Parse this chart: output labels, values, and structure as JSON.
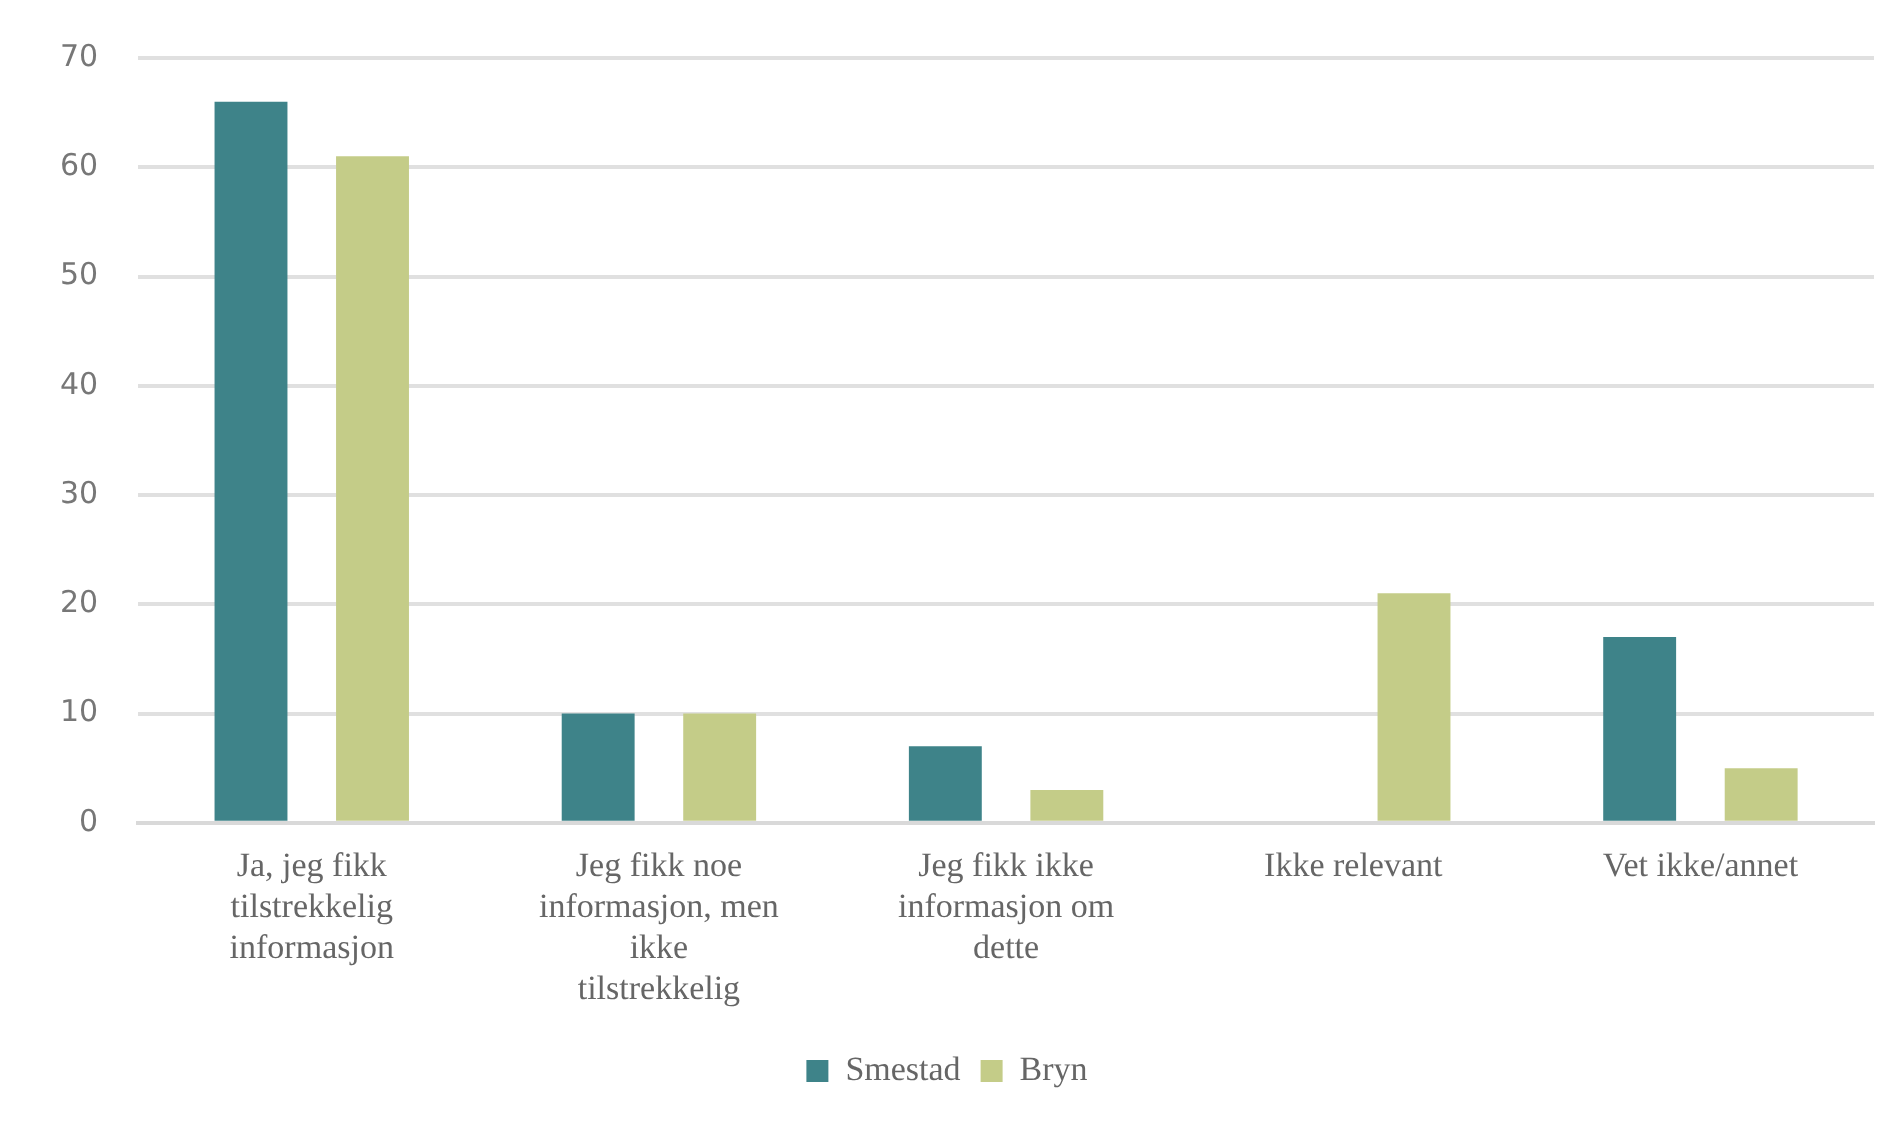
{
  "chart_data": {
    "type": "bar",
    "categories": [
      "Ja, jeg fikk tilstrekkelig informasjon",
      "Jeg fikk noe informasjon, men ikke tilstrekkelig",
      "Jeg fikk ikke informasjon om dette",
      "Ikke relevant",
      "Vet ikke/annet"
    ],
    "series": [
      {
        "name": "Smestad",
        "color": "#3e8389",
        "values": [
          66,
          10,
          7,
          0,
          17
        ]
      },
      {
        "name": "Bryn",
        "color": "#c4cc88",
        "values": [
          61,
          10,
          3,
          21,
          5
        ]
      }
    ],
    "ylim": [
      0,
      70
    ],
    "yticks": [
      0,
      10,
      20,
      30,
      40,
      50,
      60,
      70
    ],
    "grid": "y",
    "legend": "bottom"
  }
}
